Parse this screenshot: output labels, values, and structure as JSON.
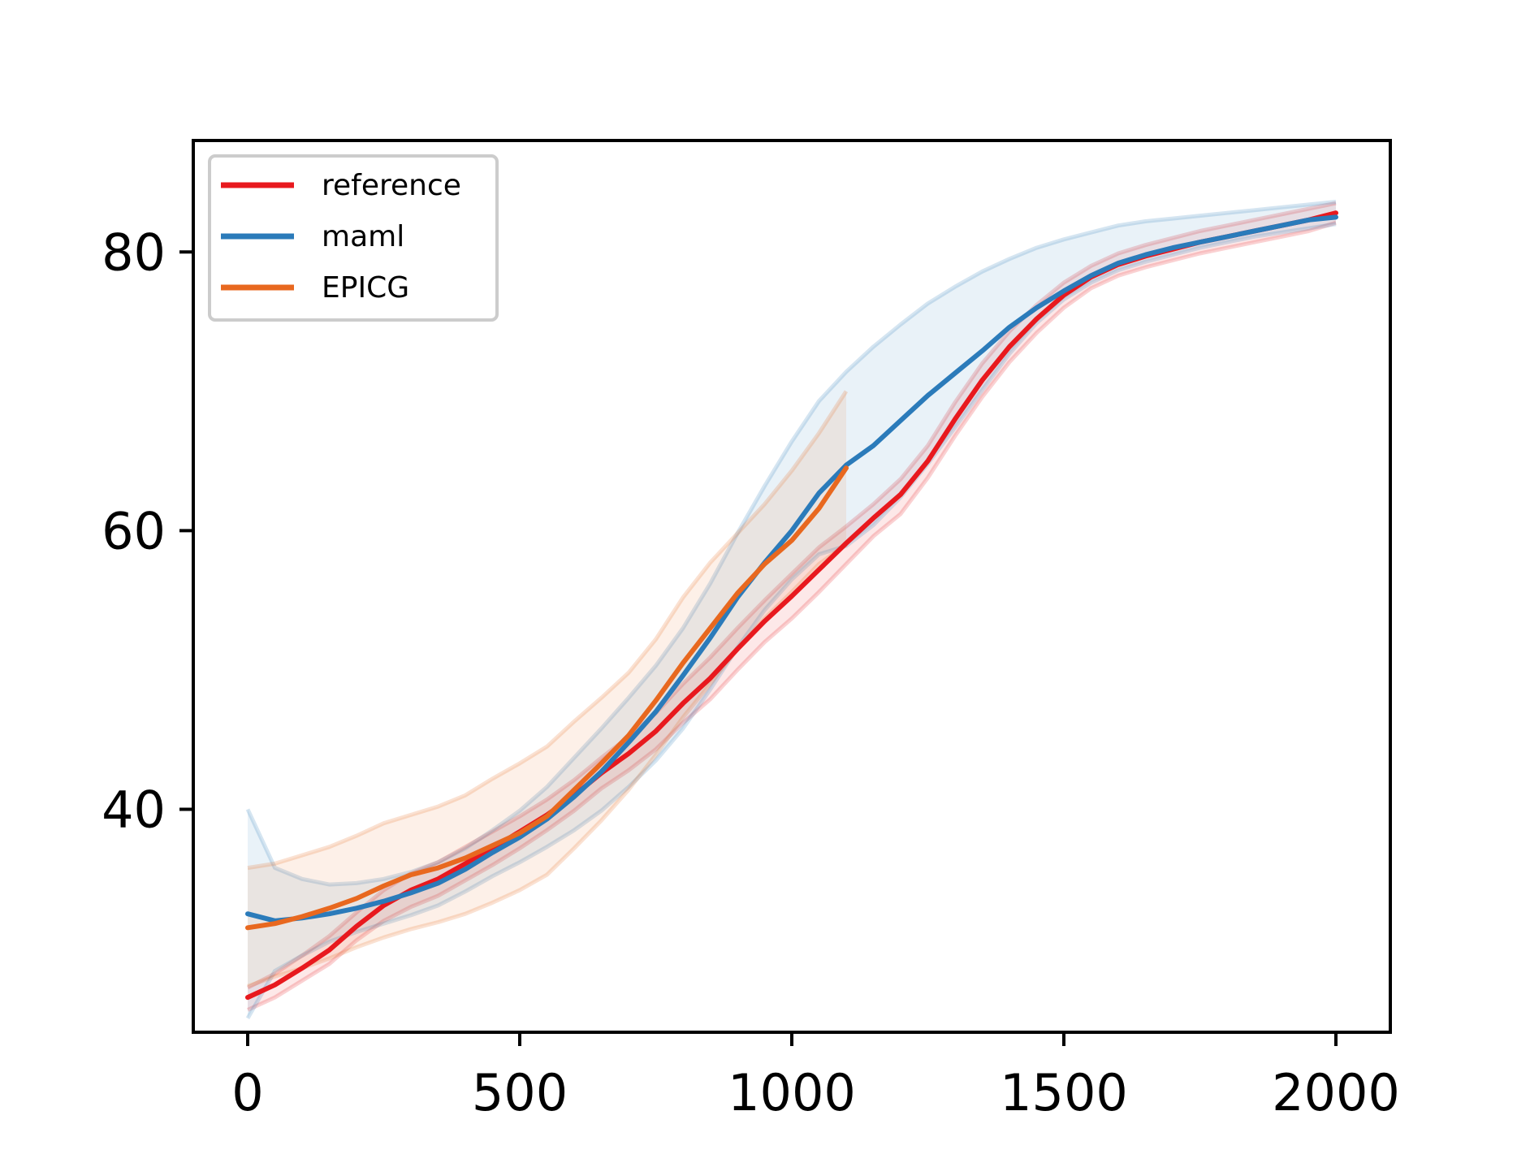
{
  "chart_data": {
    "type": "line",
    "title": "",
    "xlabel": "",
    "ylabel": "",
    "xlim": [
      -100,
      2100
    ],
    "ylim": [
      24,
      88
    ],
    "xticks": [
      0,
      500,
      1000,
      1500,
      2000
    ],
    "xtick_labels": [
      "0",
      "500",
      "1000",
      "1500",
      "2000"
    ],
    "yticks": [
      40,
      60,
      80
    ],
    "ytick_labels": [
      "40",
      "60",
      "80"
    ],
    "grid": false,
    "legend": {
      "position": "top-left",
      "entries": [
        "reference",
        "maml",
        "EPICG"
      ]
    },
    "series": [
      {
        "name": "reference",
        "color": "#e8191e",
        "x": [
          0,
          50,
          100,
          150,
          200,
          250,
          300,
          350,
          400,
          450,
          500,
          550,
          600,
          650,
          700,
          750,
          800,
          850,
          900,
          950,
          1000,
          1050,
          1100,
          1150,
          1200,
          1250,
          1300,
          1350,
          1400,
          1450,
          1500,
          1550,
          1600,
          1650,
          1700,
          1750,
          1800,
          1850,
          1900,
          1950,
          2000
        ],
        "y": [
          26.5,
          27.4,
          28.6,
          29.9,
          31.6,
          33.1,
          34.2,
          35.0,
          36.1,
          37.2,
          38.4,
          39.6,
          41.0,
          42.6,
          44.0,
          45.6,
          47.6,
          49.4,
          51.5,
          53.5,
          55.3,
          57.2,
          59.1,
          60.9,
          62.6,
          65.0,
          68.0,
          70.8,
          73.2,
          75.2,
          76.9,
          78.2,
          79.1,
          79.7,
          80.2,
          80.7,
          81.1,
          81.5,
          81.9,
          82.3,
          82.8
        ],
        "band_upper": [
          27.2,
          28.2,
          29.5,
          30.9,
          32.6,
          34.2,
          35.4,
          36.2,
          37.3,
          38.4,
          39.5,
          40.7,
          42.1,
          43.7,
          45.2,
          46.9,
          49.0,
          50.9,
          53.0,
          55.0,
          56.9,
          58.8,
          60.3,
          61.9,
          63.7,
          66.1,
          69.2,
          72.0,
          74.3,
          76.2,
          77.8,
          79.0,
          79.9,
          80.5,
          81.0,
          81.5,
          81.9,
          82.3,
          82.7,
          83.1,
          83.5
        ],
        "band_lower": [
          25.6,
          26.5,
          27.7,
          28.9,
          30.6,
          32.0,
          33.0,
          33.8,
          34.9,
          36.0,
          37.2,
          38.5,
          39.9,
          41.5,
          42.8,
          44.3,
          46.2,
          47.9,
          50.0,
          52.0,
          53.7,
          55.6,
          57.6,
          59.6,
          61.2,
          63.8,
          66.8,
          69.6,
          72.1,
          74.2,
          76.0,
          77.4,
          78.3,
          78.9,
          79.4,
          79.9,
          80.3,
          80.7,
          81.1,
          81.5,
          82.1
        ]
      },
      {
        "name": "maml",
        "color": "#2b7bba",
        "x": [
          0,
          50,
          100,
          150,
          200,
          250,
          300,
          350,
          400,
          450,
          500,
          550,
          600,
          650,
          700,
          750,
          800,
          850,
          900,
          950,
          1000,
          1050,
          1100,
          1150,
          1200,
          1250,
          1300,
          1350,
          1400,
          1450,
          1500,
          1550,
          1600,
          1650,
          1700,
          1750,
          1800,
          1850,
          1900,
          1950,
          2000
        ],
        "y": [
          32.5,
          32.0,
          32.2,
          32.5,
          32.9,
          33.4,
          34.0,
          34.7,
          35.7,
          36.9,
          38.0,
          39.3,
          40.9,
          42.7,
          44.8,
          47.0,
          49.6,
          52.3,
          55.2,
          57.7,
          60.0,
          62.7,
          64.7,
          66.1,
          67.9,
          69.7,
          71.3,
          72.9,
          74.6,
          76.0,
          77.2,
          78.3,
          79.2,
          79.8,
          80.3,
          80.7,
          81.1,
          81.5,
          81.9,
          82.3,
          82.5
        ],
        "band_upper": [
          40.0,
          35.8,
          35.0,
          34.6,
          34.7,
          35.0,
          35.5,
          36.2,
          37.2,
          38.5,
          39.9,
          41.6,
          43.7,
          45.8,
          48.0,
          50.3,
          53.0,
          56.2,
          59.8,
          63.2,
          66.4,
          69.3,
          71.4,
          73.2,
          74.8,
          76.3,
          77.5,
          78.6,
          79.5,
          80.3,
          80.9,
          81.4,
          81.9,
          82.2,
          82.4,
          82.6,
          82.8,
          83.0,
          83.2,
          83.4,
          83.6
        ],
        "band_lower": [
          25.0,
          28.4,
          29.5,
          30.5,
          31.2,
          31.8,
          32.4,
          33.1,
          34.1,
          35.2,
          36.2,
          37.3,
          38.5,
          39.9,
          41.6,
          43.5,
          45.8,
          48.6,
          51.6,
          54.3,
          56.5,
          58.3,
          58.9,
          60.4,
          62.4,
          64.8,
          67.4,
          70.1,
          72.7,
          74.9,
          76.6,
          77.8,
          78.7,
          79.3,
          79.8,
          80.3,
          80.7,
          81.1,
          81.4,
          81.7,
          82.0
        ]
      },
      {
        "name": "EPICG",
        "color": "#e8681f",
        "x": [
          0,
          50,
          100,
          150,
          200,
          250,
          300,
          350,
          400,
          450,
          500,
          550,
          600,
          650,
          700,
          750,
          800,
          850,
          900,
          950,
          1000,
          1050,
          1100
        ],
        "y": [
          31.5,
          31.8,
          32.3,
          32.9,
          33.6,
          34.5,
          35.3,
          35.8,
          36.5,
          37.4,
          38.3,
          39.5,
          41.4,
          43.3,
          45.3,
          47.8,
          50.5,
          53.0,
          55.5,
          57.6,
          59.3,
          61.6,
          64.5
        ],
        "band_upper": [
          35.8,
          36.1,
          36.7,
          37.3,
          38.1,
          39.0,
          39.6,
          40.2,
          41.0,
          42.2,
          43.3,
          44.5,
          46.3,
          48.0,
          49.8,
          52.2,
          55.2,
          57.7,
          59.8,
          61.9,
          64.3,
          67.0,
          70.0
        ],
        "band_lower": [
          27.3,
          28.0,
          28.6,
          29.3,
          30.1,
          30.8,
          31.4,
          31.9,
          32.5,
          33.3,
          34.2,
          35.3,
          37.2,
          39.2,
          41.4,
          43.9,
          46.6,
          49.0,
          51.5,
          53.7,
          55.6,
          57.6,
          59.0
        ]
      }
    ]
  }
}
